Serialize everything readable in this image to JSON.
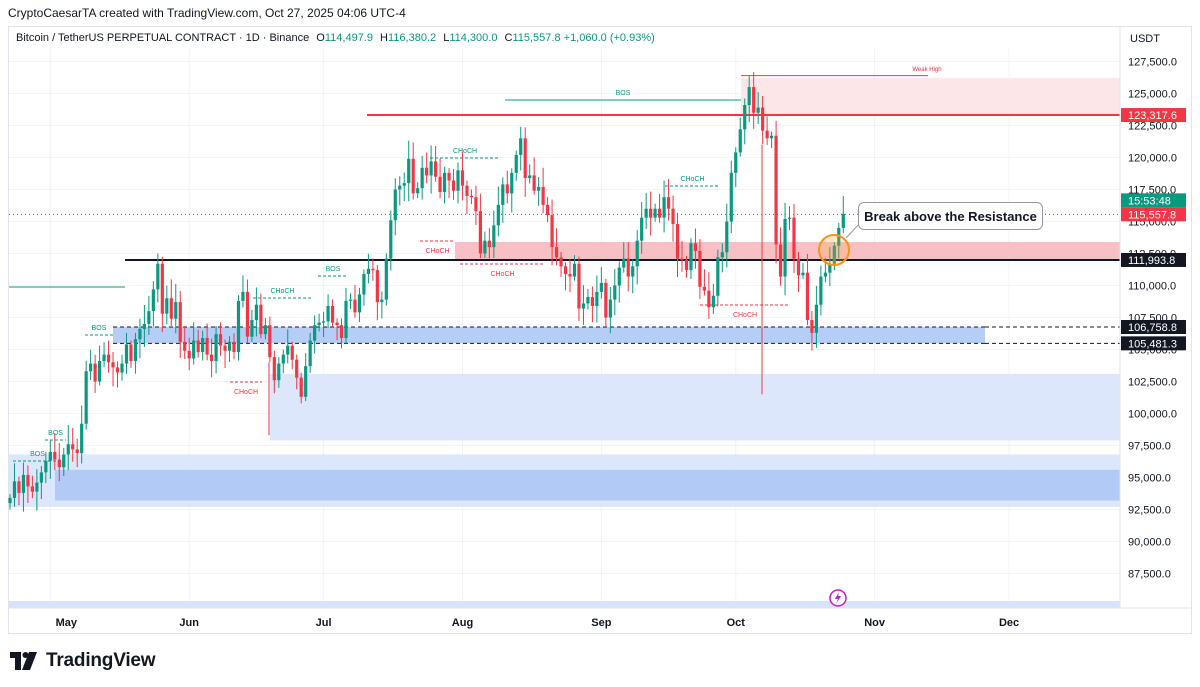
{
  "header": {
    "author_line": "CryptoCaesarTA created with TradingView.com, Oct 27, 2025 04:06 UTC-4"
  },
  "legend": {
    "symbol": "Bitcoin / TetherUS PERPETUAL CONTRACT · 1D · Binance",
    "o_key": "O",
    "o": "114,497.9",
    "h_key": "H",
    "h": "116,380.2",
    "l_key": "L",
    "l": "114,300.0",
    "c_key": "C",
    "c": "115,557.8",
    "change": "+1,060.0 (+0.93%)"
  },
  "brand": {
    "text": "TradingView"
  },
  "colors": {
    "up": "#089981",
    "down": "#f23645",
    "resistance_zone": "#f7b5ba",
    "supply_zone": "#fde2e4",
    "demand_zone_dark": "#a9c4f5",
    "demand_zone_light": "#d6e3fc",
    "grid": "#f2f3f5"
  },
  "chart_data": {
    "type": "candlestick",
    "currency": "USDT",
    "ylim": [
      85500,
      128500
    ],
    "y_ticks": [
      {
        "value": 127500,
        "label": "127,500.0"
      },
      {
        "value": 125000,
        "label": "125,000.0"
      },
      {
        "value": 122500,
        "label": "122,500.0"
      },
      {
        "value": 120000,
        "label": "120,000.0"
      },
      {
        "value": 117500,
        "label": "117,500.0"
      },
      {
        "value": 115000,
        "label": "115,000.0"
      },
      {
        "value": 112500,
        "label": "112,500.0"
      },
      {
        "value": 110000,
        "label": "110,000.0"
      },
      {
        "value": 107500,
        "label": "107,500.0"
      },
      {
        "value": 105000,
        "label": "105,000.0"
      },
      {
        "value": 102500,
        "label": "102,500.0"
      },
      {
        "value": 100000,
        "label": "100,000.0"
      },
      {
        "value": 97500,
        "label": "97,500.0"
      },
      {
        "value": 95000,
        "label": "95,000.0"
      },
      {
        "value": 92500,
        "label": "92,500.0"
      },
      {
        "value": 90000,
        "label": "90,000.0"
      },
      {
        "value": 87500,
        "label": "87,500.0"
      }
    ],
    "x_ticks": [
      {
        "date": "2025-05-01",
        "label": "May"
      },
      {
        "date": "2025-06-01",
        "label": "Jun"
      },
      {
        "date": "2025-07-01",
        "label": "Jul"
      },
      {
        "date": "2025-08-01",
        "label": "Aug"
      },
      {
        "date": "2025-09-01",
        "label": "Sep"
      },
      {
        "date": "2025-10-01",
        "label": "Oct"
      },
      {
        "date": "2025-11-01",
        "label": "Nov"
      },
      {
        "date": "2025-12-01",
        "label": "Dec"
      }
    ],
    "start_date": "2025-04-22",
    "closes": [
      93400,
      94700,
      93800,
      95200,
      94300,
      93900,
      94600,
      95400,
      96300,
      97000,
      96400,
      95800,
      96800,
      97600,
      97200,
      96900,
      99200,
      103300,
      103900,
      102500,
      104100,
      104600,
      104000,
      103600,
      103200,
      103900,
      105400,
      104100,
      105800,
      106600,
      107000,
      108000,
      109700,
      111700,
      107800,
      109000,
      107400,
      108700,
      105600,
      104900,
      104300,
      105700,
      104800,
      105900,
      104600,
      104100,
      106200,
      105300,
      104900,
      105600,
      104800,
      108800,
      109500,
      106000,
      107300,
      108500,
      106200,
      106900,
      104400,
      102600,
      103900,
      104600,
      105300,
      104200,
      102800,
      101300,
      103700,
      105700,
      106900,
      107100,
      107200,
      108400,
      107100,
      106900,
      105900,
      108800,
      108900,
      107900,
      109300,
      110900,
      111300,
      111200,
      108700,
      108900,
      112100,
      115100,
      117500,
      117800,
      118000,
      119900,
      117200,
      117600,
      119200,
      118600,
      119700,
      118500,
      117300,
      118800,
      118200,
      117400,
      119000,
      117800,
      117000,
      116900,
      115800,
      112500,
      113500,
      113000,
      114700,
      116300,
      117900,
      117200,
      118800,
      120200,
      121500,
      118400,
      118600,
      117400,
      117700,
      116300,
      115500,
      113000,
      112200,
      111500,
      110900,
      110700,
      111700,
      108200,
      108600,
      109100,
      108400,
      109500,
      110200,
      107500,
      108900,
      110000,
      111400,
      112100,
      110700,
      111500,
      113500,
      115300,
      116000,
      115300,
      116000,
      115300,
      116900,
      116000,
      114800,
      112100,
      112000,
      111200,
      113300,
      112700,
      109900,
      109600,
      108300,
      109200,
      112200,
      112600,
      115000,
      118800,
      120400,
      122200,
      124100,
      125500,
      123500,
      123900,
      122100,
      121500,
      121700,
      113200,
      110700,
      115200,
      115300,
      112100,
      110800,
      111000,
      107300,
      106300,
      108500,
      110700,
      111000,
      111700,
      113100,
      114500,
      115600
    ],
    "opens_note": "",
    "zones": [
      {
        "name": "supply",
        "low": 123317.6,
        "high": 126200
      },
      {
        "name": "resistance",
        "low": 111993.8,
        "high": 113400
      },
      {
        "name": "demand-mid",
        "low": 105481.3,
        "high": 106758.8
      },
      {
        "name": "demand-wide",
        "low": 97900,
        "high": 103100
      },
      {
        "name": "demand-low-outer",
        "low": 92700,
        "high": 96800
      },
      {
        "name": "demand-low-inner",
        "low": 93200,
        "high": 95600
      }
    ],
    "levels": [
      {
        "value": 123317.6,
        "label": "123,317.6"
      },
      {
        "value": 111993.8,
        "label": "111,993.8"
      },
      {
        "value": 106758.8,
        "label": "106,758.8"
      },
      {
        "value": 105481.3,
        "label": "105,481.3"
      }
    ],
    "last_price": {
      "value": 115557.8,
      "label": "115,557.8",
      "countdown": "15:53:48"
    },
    "structure_labels": {
      "bos": "BOS",
      "choch": "CHoCH",
      "weak_high": "Weak High"
    },
    "annotation": "Break above the Resistance"
  }
}
